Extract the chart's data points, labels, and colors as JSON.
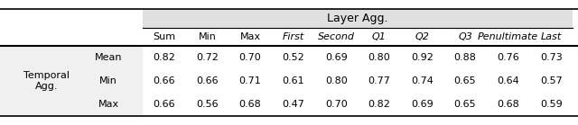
{
  "title": "Layer Agg.",
  "col_headers": [
    "Sum",
    "Min",
    "Max",
    "First",
    "Second",
    "Q1",
    "Q2",
    "Q3",
    "Penultimate",
    "Last"
  ],
  "col_headers_italic": [
    false,
    false,
    false,
    true,
    true,
    true,
    true,
    true,
    true,
    true
  ],
  "row_group_label": "Temporal\nAgg.",
  "row_labels": [
    "Mean",
    "Min",
    "Max"
  ],
  "data": [
    [
      0.82,
      0.72,
      0.7,
      0.52,
      0.69,
      0.8,
      0.92,
      0.88,
      0.76,
      0.73
    ],
    [
      0.66,
      0.66,
      0.71,
      0.61,
      0.8,
      0.77,
      0.74,
      0.65,
      0.64,
      0.57
    ],
    [
      0.66,
      0.56,
      0.68,
      0.47,
      0.7,
      0.82,
      0.69,
      0.65,
      0.68,
      0.59
    ]
  ],
  "background_color": "#ffffff",
  "header_bg_color": "#e0e0e0",
  "row_area_bg_color": "#f0f0f0",
  "figsize": [
    6.4,
    1.39
  ],
  "dpi": 100
}
